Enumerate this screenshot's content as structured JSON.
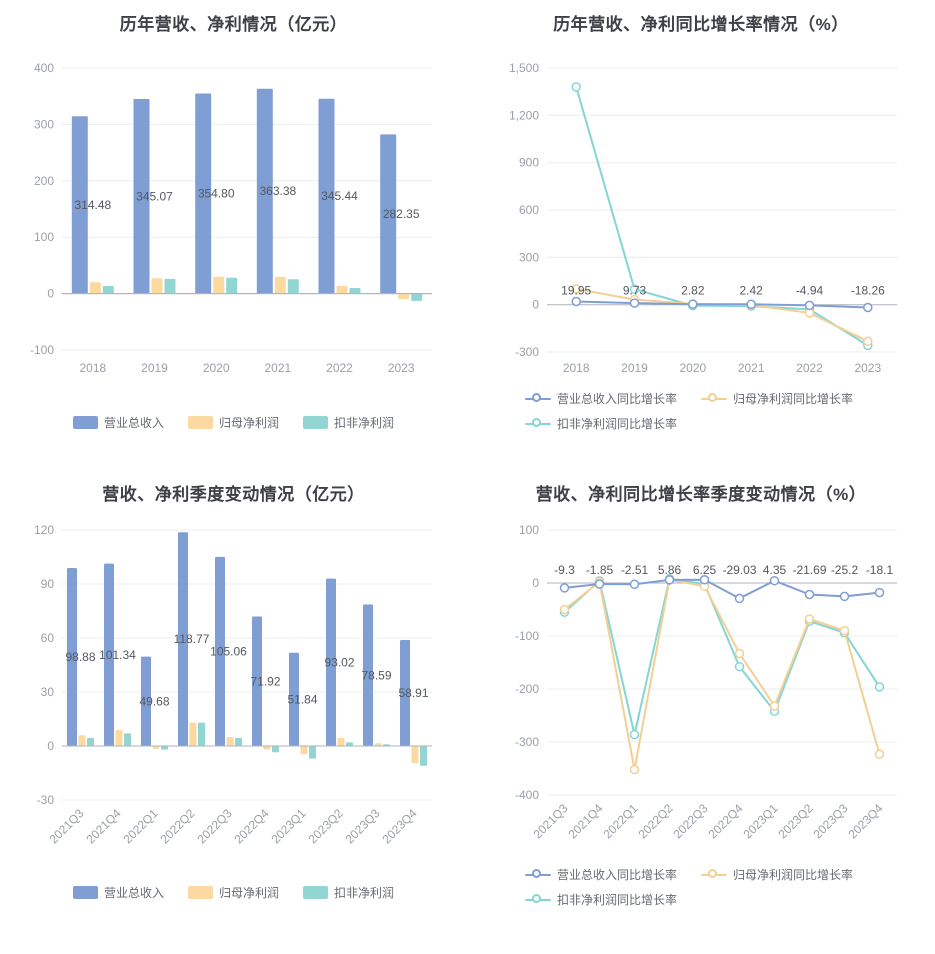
{
  "palette": {
    "blue": "#7f9ed3",
    "orange": "#fbd9a0",
    "teal": "#92d5d3",
    "lineBlue": "#7f9ed3",
    "lineOrange": "#f3cf94",
    "lineTeal": "#83d6d3",
    "axis": "#9aa0a8",
    "grid": "#e9edf2",
    "zero": "#aeb4bc",
    "label": "#54585f",
    "title": "#3d4046"
  },
  "chart_data": [
    {
      "key": "annual-values",
      "title": "历年营收、净利情况（亿元）",
      "type": "bar",
      "categories": [
        "2018",
        "2019",
        "2020",
        "2021",
        "2022",
        "2023"
      ],
      "series": [
        {
          "name": "营业总收入",
          "color": "blue",
          "values": [
            314.48,
            345.07,
            354.8,
            363.38,
            345.44,
            282.35
          ]
        },
        {
          "name": "归母净利润",
          "color": "orange",
          "values": [
            20.3,
            27.2,
            29.7,
            29.6,
            13.5,
            -9.6
          ]
        },
        {
          "name": "扣非净利润",
          "color": "teal",
          "values": [
            13.5,
            26.0,
            28.0,
            25.5,
            10.0,
            -13.0
          ]
        }
      ],
      "bar_labels": {
        "series": 0,
        "labels": [
          "314.48",
          "345.07",
          "354.80",
          "363.38",
          "345.44",
          "282.35"
        ]
      },
      "y": {
        "min": -100,
        "max": 400,
        "ticks": [
          "400",
          "300",
          "200",
          "100",
          "0",
          "-100"
        ]
      },
      "legend_position": "bottom-center"
    },
    {
      "key": "annual-growth",
      "title": "历年营收、净利同比增长率情况（%）",
      "type": "line",
      "categories": [
        "2018",
        "2019",
        "2020",
        "2021",
        "2022",
        "2023"
      ],
      "series": [
        {
          "name": "营业总收入同比增长率",
          "color": "lineBlue",
          "values": [
            19.95,
            9.73,
            2.82,
            2.42,
            -4.94,
            -18.26
          ]
        },
        {
          "name": "归母净利润同比增长率",
          "color": "lineOrange",
          "values": [
            100,
            32,
            5,
            -2,
            -52,
            -232
          ]
        },
        {
          "name": "扣非净利润同比增长率",
          "color": "lineTeal",
          "values": [
            1380,
            98,
            -6,
            -9,
            -30,
            -258
          ]
        }
      ],
      "point_labels": {
        "series": 0,
        "labels": [
          "19.95",
          "9.73",
          "2.82",
          "2.42",
          "-4.94",
          "-18.26"
        ]
      },
      "y": {
        "min": -300,
        "max": 1500,
        "ticks": [
          "1,500",
          "1,200",
          "900",
          "600",
          "300",
          "0",
          "-300"
        ]
      },
      "legend_position": "bottom-left-two-rows"
    },
    {
      "key": "quarterly-values",
      "title": "营收、净利季度变动情况（亿元）",
      "type": "bar",
      "categories": [
        "2021Q3",
        "2021Q4",
        "2022Q1",
        "2022Q2",
        "2022Q3",
        "2022Q4",
        "2023Q1",
        "2023Q2",
        "2023Q3",
        "2023Q4"
      ],
      "series": [
        {
          "name": "营业总收入",
          "color": "blue",
          "values": [
            98.88,
            101.34,
            49.68,
            118.77,
            105.06,
            71.92,
            51.84,
            93.02,
            78.59,
            58.91
          ]
        },
        {
          "name": "归母净利润",
          "color": "orange",
          "values": [
            6.0,
            9.0,
            -1.5,
            13.0,
            5.0,
            -2.0,
            -4.5,
            4.5,
            1.5,
            -9.5
          ]
        },
        {
          "name": "扣非净利润",
          "color": "teal",
          "values": [
            4.5,
            7.0,
            -2.0,
            13.0,
            4.5,
            -3.5,
            -7.0,
            2.0,
            1.0,
            -11.0
          ]
        }
      ],
      "bar_labels": {
        "series": 0,
        "labels": [
          "98.88",
          "101.34",
          "49.68",
          "118.77",
          "105.06",
          "71.92",
          "51.84",
          "93.02",
          "78.59",
          "58.91"
        ]
      },
      "y": {
        "min": -30,
        "max": 120,
        "ticks": [
          "120",
          "90",
          "60",
          "30",
          "0",
          "-30"
        ]
      },
      "legend_position": "bottom-center"
    },
    {
      "key": "quarterly-growth",
      "title": "营收、净利同比增长率季度变动情况（%）",
      "type": "line",
      "categories": [
        "2021Q3",
        "2021Q4",
        "2022Q1",
        "2022Q2",
        "2022Q3",
        "2022Q4",
        "2023Q1",
        "2023Q2",
        "2023Q3",
        "2023Q4"
      ],
      "series": [
        {
          "name": "营业总收入同比增长率",
          "color": "lineBlue",
          "values": [
            -9.3,
            -1.85,
            -2.51,
            5.86,
            6.25,
            -29.03,
            4.35,
            -21.69,
            -25.2,
            -18.1
          ]
        },
        {
          "name": "归母净利润同比增长率",
          "color": "lineOrange",
          "values": [
            -50,
            2,
            -352,
            6,
            -6,
            -133,
            -232,
            -68,
            -90,
            -323
          ]
        },
        {
          "name": "扣非净利润同比增长率",
          "color": "lineTeal",
          "values": [
            -55,
            4,
            -286,
            8,
            -2,
            -158,
            -242,
            -72,
            -94,
            -196
          ]
        }
      ],
      "point_labels": {
        "series": 0,
        "labels": [
          "-9.3",
          "-1.85",
          "-2.51",
          "5.86",
          "6.25",
          "-29.03",
          "4.35",
          "-21.69",
          "-25.2",
          "-18.1"
        ]
      },
      "y": {
        "min": -400,
        "max": 100,
        "ticks": [
          "100",
          "0",
          "-100",
          "-200",
          "-300",
          "-400"
        ]
      },
      "legend_position": "bottom-left-two-rows"
    }
  ]
}
